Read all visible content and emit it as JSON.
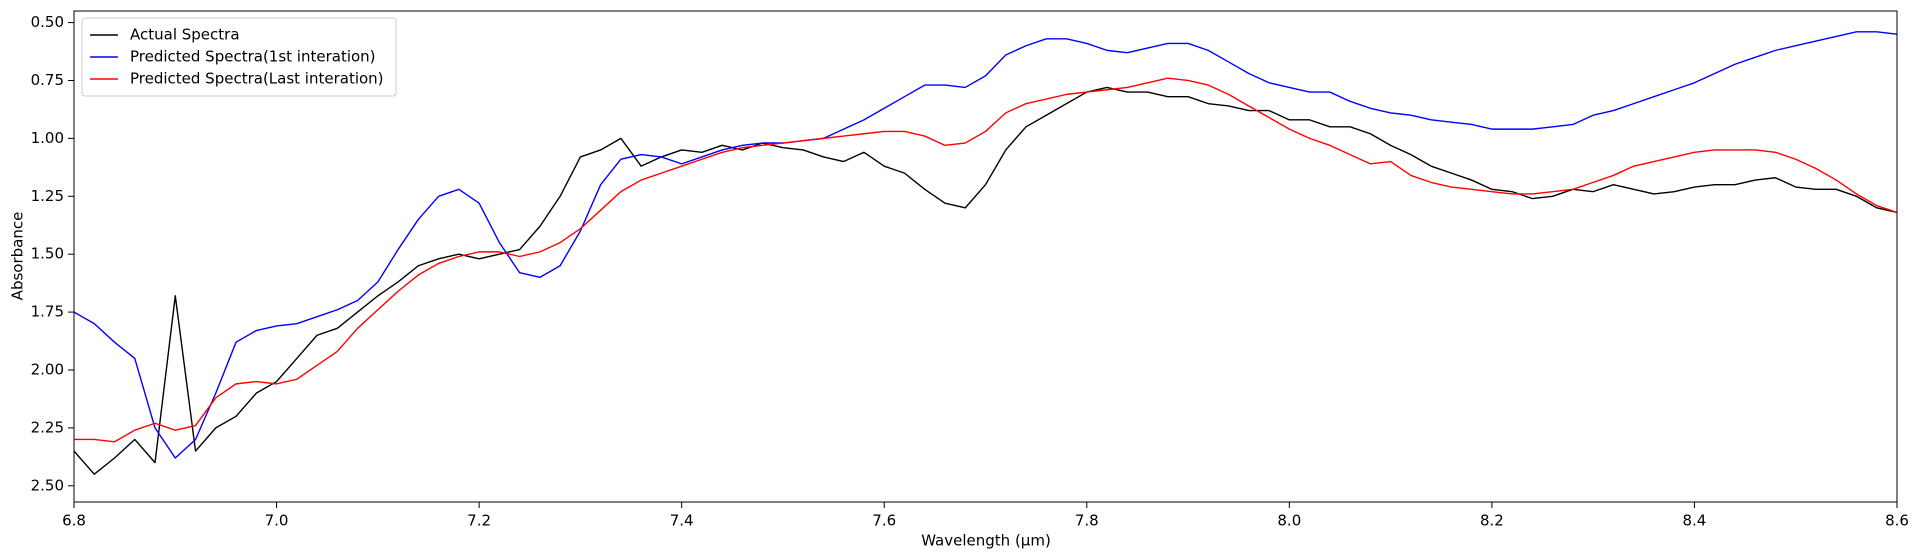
{
  "chart_data": {
    "type": "line",
    "xlabel": "Wavelength (μm)",
    "ylabel": "Absorbance",
    "legend": "upper left",
    "xlim": [
      6.8,
      8.6
    ],
    "ylim": [
      2.57,
      0.45
    ],
    "xticks": [
      6.8,
      {
        "value": 7,
        "label": "7.0"
      },
      7.2,
      7.4,
      7.6,
      7.8,
      {
        "value": 8,
        "label": "8.0"
      },
      8.2,
      8.4,
      8.6
    ],
    "yticks": [
      {
        "value": 0.5,
        "label": "0.50"
      },
      0.75,
      {
        "value": 1,
        "label": "1.00"
      },
      1.25,
      {
        "value": 1.5,
        "label": "1.50"
      },
      1.75,
      {
        "value": 2,
        "label": "2.00"
      },
      2.25,
      {
        "value": 2.5,
        "label": "2.50"
      }
    ],
    "x": [
      6.8,
      6.82,
      6.84,
      6.86,
      6.88,
      6.9,
      6.92,
      6.94,
      6.96,
      6.98,
      7.0,
      7.02,
      7.04,
      7.06,
      7.08,
      7.1,
      7.12,
      7.14,
      7.16,
      7.18,
      7.2,
      7.22,
      7.24,
      7.26,
      7.28,
      7.3,
      7.32,
      7.34,
      7.36,
      7.38,
      7.4,
      7.42,
      7.44,
      7.46,
      7.48,
      7.5,
      7.52,
      7.54,
      7.56,
      7.58,
      7.6,
      7.62,
      7.64,
      7.66,
      7.68,
      7.7,
      7.72,
      7.74,
      7.76,
      7.78,
      7.8,
      7.82,
      7.84,
      7.86,
      7.88,
      7.9,
      7.92,
      7.94,
      7.96,
      7.98,
      8.0,
      8.02,
      8.04,
      8.06,
      8.08,
      8.1,
      8.12,
      8.14,
      8.16,
      8.18,
      8.2,
      8.22,
      8.24,
      8.26,
      8.28,
      8.3,
      8.32,
      8.34,
      8.36,
      8.38,
      8.4,
      8.42,
      8.44,
      8.46,
      8.48,
      8.5,
      8.52,
      8.54,
      8.56,
      8.58,
      8.6
    ],
    "series": [
      {
        "name": "Actual Spectra",
        "color": "#000000",
        "values": [
          2.35,
          2.45,
          2.38,
          2.3,
          2.4,
          1.68,
          2.35,
          2.25,
          2.2,
          2.1,
          2.05,
          1.95,
          1.85,
          1.82,
          1.75,
          1.68,
          1.62,
          1.55,
          1.52,
          1.5,
          1.52,
          1.5,
          1.48,
          1.38,
          1.25,
          1.08,
          1.05,
          1.0,
          1.12,
          1.08,
          1.05,
          1.06,
          1.03,
          1.05,
          1.02,
          1.04,
          1.05,
          1.08,
          1.1,
          1.06,
          1.12,
          1.15,
          1.22,
          1.28,
          1.3,
          1.2,
          1.05,
          0.95,
          0.9,
          0.85,
          0.8,
          0.78,
          0.8,
          0.8,
          0.82,
          0.82,
          0.85,
          0.86,
          0.88,
          0.88,
          0.92,
          0.92,
          0.95,
          0.95,
          0.98,
          1.03,
          1.07,
          1.12,
          1.15,
          1.18,
          1.22,
          1.23,
          1.26,
          1.25,
          1.22,
          1.23,
          1.2,
          1.22,
          1.24,
          1.23,
          1.21,
          1.2,
          1.2,
          1.18,
          1.17,
          1.21,
          1.22,
          1.22,
          1.25,
          1.3,
          1.32
        ]
      },
      {
        "name": "Predicted Spectra(1st interation)",
        "color": "#0000ff",
        "values": [
          1.75,
          1.8,
          1.88,
          1.95,
          2.25,
          2.38,
          2.3,
          2.1,
          1.88,
          1.83,
          1.81,
          1.8,
          1.77,
          1.74,
          1.7,
          1.62,
          1.48,
          1.35,
          1.25,
          1.22,
          1.28,
          1.45,
          1.58,
          1.6,
          1.55,
          1.4,
          1.2,
          1.09,
          1.07,
          1.08,
          1.11,
          1.08,
          1.05,
          1.03,
          1.02,
          1.02,
          1.01,
          1.0,
          0.96,
          0.92,
          0.87,
          0.82,
          0.77,
          0.77,
          0.78,
          0.73,
          0.64,
          0.6,
          0.57,
          0.57,
          0.59,
          0.62,
          0.63,
          0.61,
          0.59,
          0.59,
          0.62,
          0.67,
          0.72,
          0.76,
          0.78,
          0.8,
          0.8,
          0.84,
          0.87,
          0.89,
          0.9,
          0.92,
          0.93,
          0.94,
          0.96,
          0.96,
          0.96,
          0.95,
          0.94,
          0.9,
          0.88,
          0.85,
          0.82,
          0.79,
          0.76,
          0.72,
          0.68,
          0.65,
          0.62,
          0.6,
          0.58,
          0.56,
          0.54,
          0.54,
          0.55
        ]
      },
      {
        "name": "Predicted Spectra(Last interation)",
        "color": "#ff0000",
        "values": [
          2.3,
          2.3,
          2.31,
          2.26,
          2.23,
          2.26,
          2.24,
          2.12,
          2.06,
          2.05,
          2.06,
          2.04,
          1.98,
          1.92,
          1.82,
          1.74,
          1.66,
          1.59,
          1.54,
          1.51,
          1.49,
          1.49,
          1.51,
          1.49,
          1.45,
          1.39,
          1.31,
          1.23,
          1.18,
          1.15,
          1.12,
          1.09,
          1.06,
          1.04,
          1.03,
          1.02,
          1.01,
          1.0,
          0.99,
          0.98,
          0.97,
          0.97,
          0.99,
          1.03,
          1.02,
          0.97,
          0.89,
          0.85,
          0.83,
          0.81,
          0.8,
          0.79,
          0.78,
          0.76,
          0.74,
          0.75,
          0.77,
          0.81,
          0.86,
          0.91,
          0.96,
          1.0,
          1.03,
          1.07,
          1.11,
          1.1,
          1.16,
          1.19,
          1.21,
          1.22,
          1.23,
          1.24,
          1.24,
          1.23,
          1.22,
          1.19,
          1.16,
          1.12,
          1.1,
          1.08,
          1.06,
          1.05,
          1.05,
          1.05,
          1.06,
          1.09,
          1.13,
          1.18,
          1.24,
          1.29,
          1.32
        ]
      }
    ]
  }
}
